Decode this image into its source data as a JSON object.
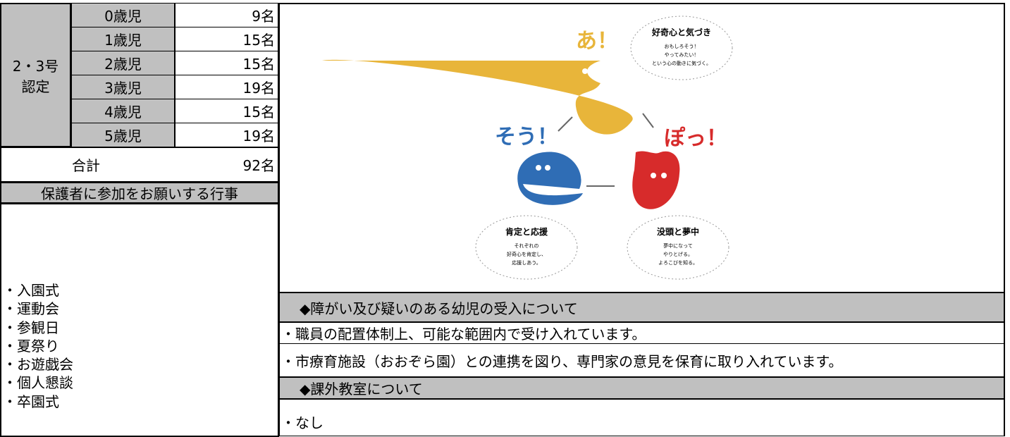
{
  "table": {
    "group_label": [
      "2・3号",
      "認定"
    ],
    "rows": [
      {
        "age": "0歳児",
        "count": "9名"
      },
      {
        "age": "1歳児",
        "count": "15名"
      },
      {
        "age": "2歳児",
        "count": "15名"
      },
      {
        "age": "3歳児",
        "count": "19名"
      },
      {
        "age": "4歳児",
        "count": "15名"
      },
      {
        "age": "5歳児",
        "count": "19名"
      }
    ],
    "total_label": "合計",
    "total": "92名"
  },
  "events": {
    "header": "保護者に参加をお願いする行事",
    "items": [
      "・入園式",
      "・運動会",
      "・参観日",
      "・夏祭り",
      "・お遊戯会",
      "・個人懇談",
      "・卒園式"
    ]
  },
  "illustration": {
    "a": "あ！",
    "sou": "そう！",
    "po": "ぽっ！",
    "bubbles": [
      {
        "title": "好奇心と気づき",
        "lines": [
          "おもしろそう！",
          "やってみたい！",
          "という心の動きに気づく。"
        ]
      },
      {
        "title": "肯定と応援",
        "lines": [
          "それぞれの",
          "好奇心を肯定し、",
          "応援しあう。"
        ]
      },
      {
        "title": "没頭と夢中",
        "lines": [
          "夢中になって",
          "やりとげる。",
          "よろこびを知る。"
        ]
      }
    ]
  },
  "sections": [
    {
      "header": "◆障がい及び疑いのある幼児の受入について",
      "items": [
        "・職員の配置体制上、可能な範囲内で受け入れています。",
        "・市療育施設（おおぞら園）との連携を図り、専門家の意見を保育に取り入れています。"
      ]
    },
    {
      "header": "◆課外教室について",
      "items": [
        "・なし"
      ]
    }
  ]
}
